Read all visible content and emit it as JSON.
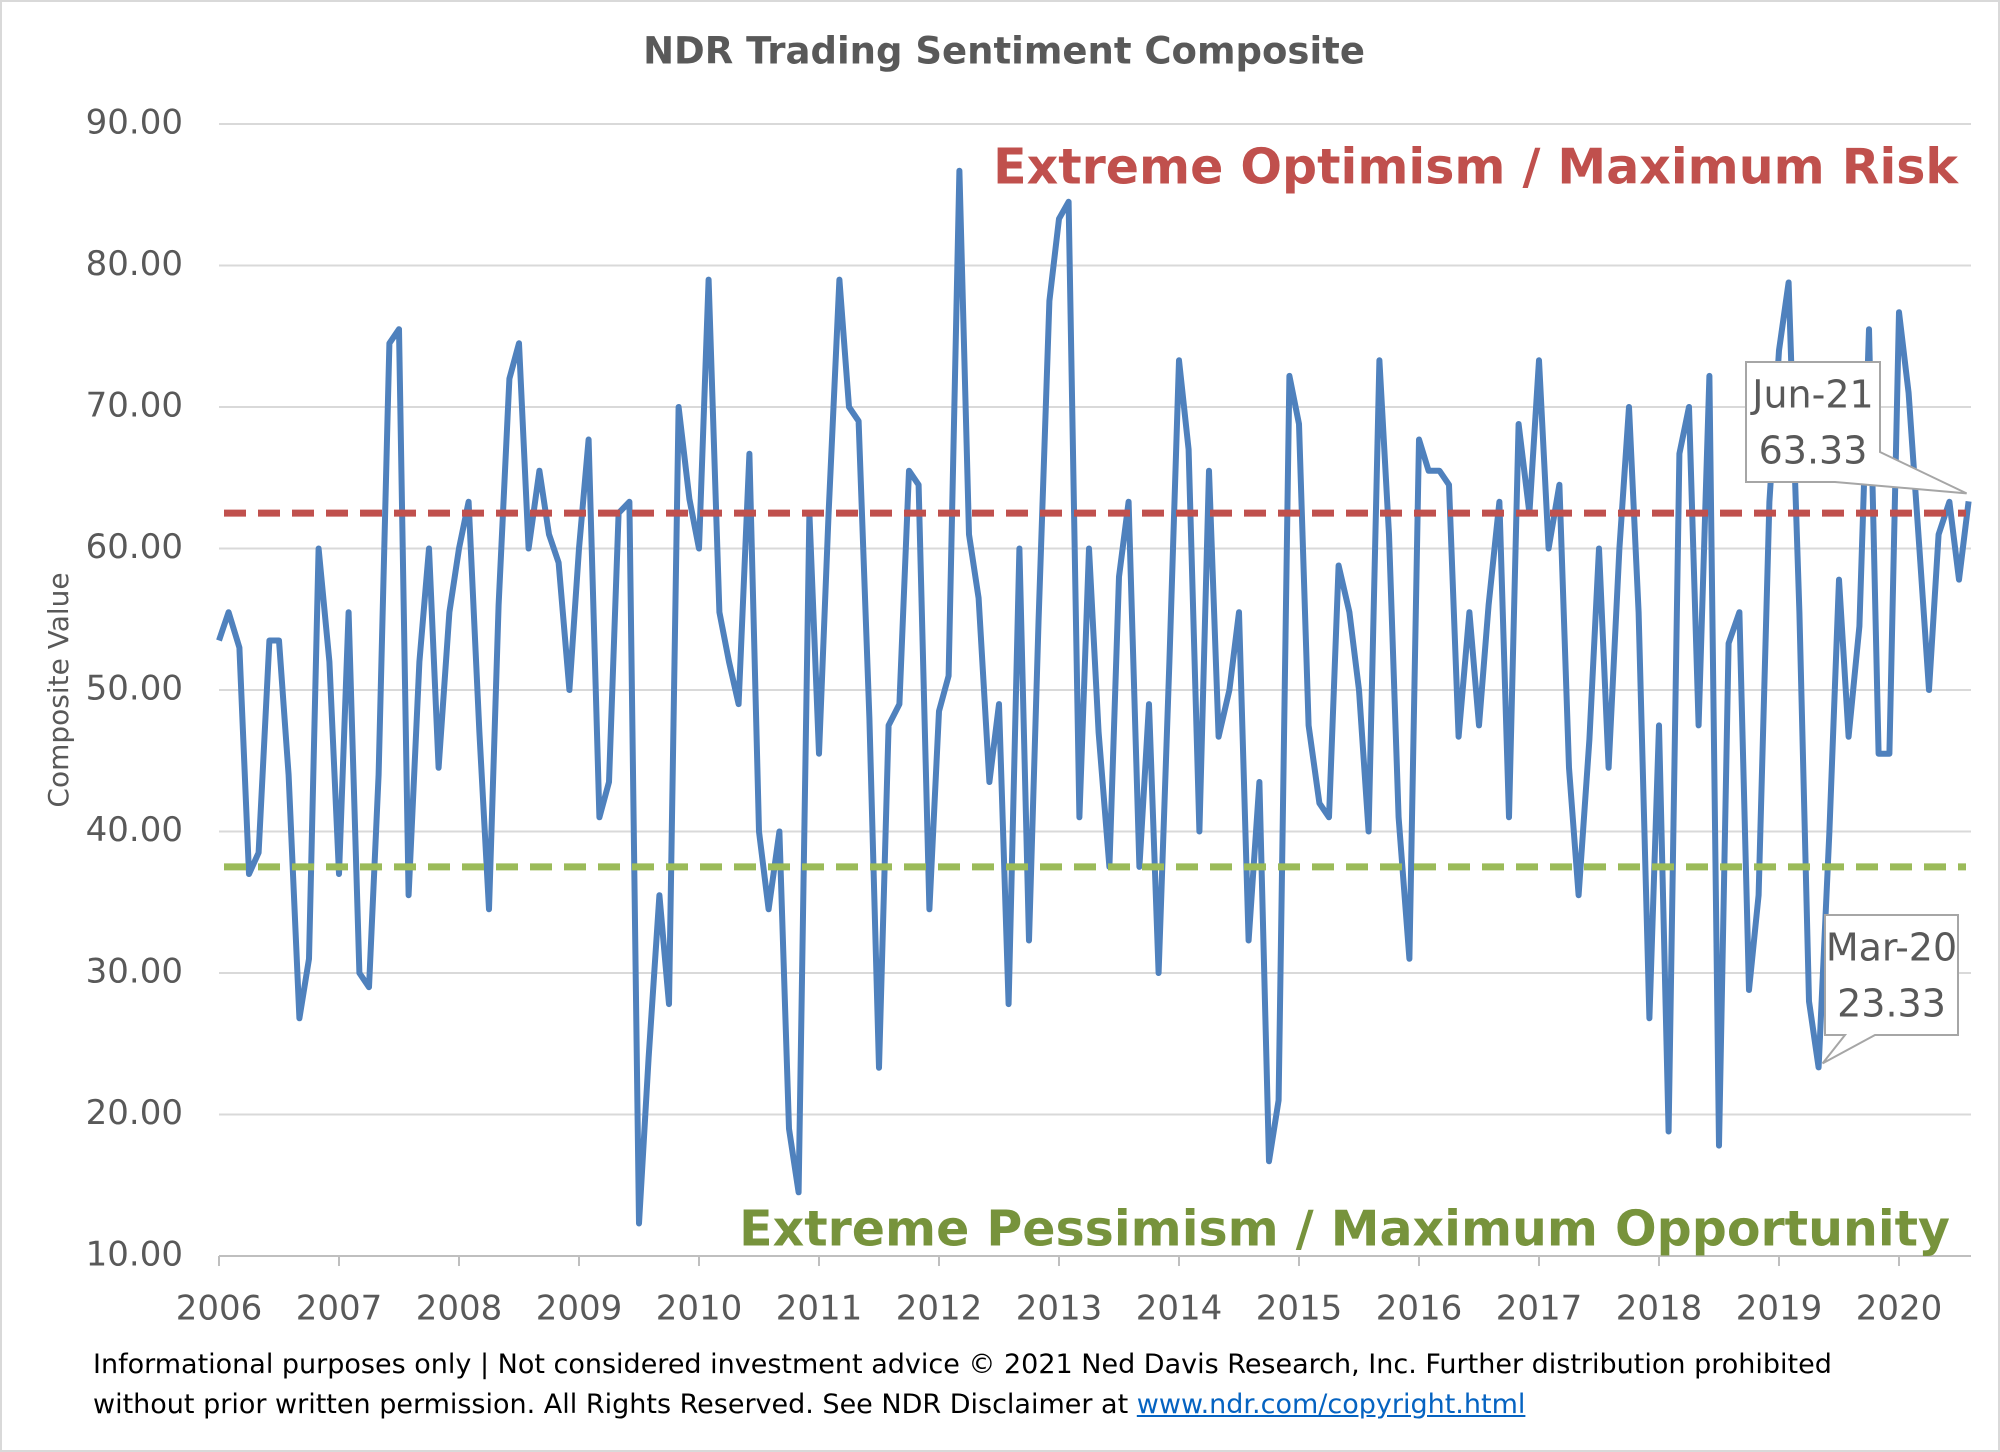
{
  "chart_data": {
    "type": "line",
    "title": "NDR Trading Sentiment Composite",
    "y_label": "Composite Value",
    "color": "#4f81bd",
    "x": [
      2006,
      2006.08,
      2006.17,
      2006.25,
      2006.33,
      2006.42,
      2006.5,
      2006.58,
      2006.67,
      2006.75,
      2006.83,
      2006.92,
      2007,
      2007.08,
      2007.17,
      2007.25,
      2007.33,
      2007.42,
      2007.5,
      2007.58,
      2007.67,
      2007.75,
      2007.83,
      2007.92,
      2008,
      2008.08,
      2008.17,
      2008.25,
      2008.33,
      2008.42,
      2008.5,
      2008.58,
      2008.67,
      2008.75,
      2008.83,
      2008.92,
      2009,
      2009.08,
      2009.17,
      2009.25,
      2009.33,
      2009.42,
      2009.5,
      2009.58,
      2009.67,
      2009.75,
      2009.83,
      2009.92,
      2010,
      2010.08,
      2010.17,
      2010.25,
      2010.33,
      2010.42,
      2010.5,
      2010.58,
      2010.67,
      2010.75,
      2010.83,
      2010.92,
      2011,
      2011.08,
      2011.17,
      2011.25,
      2011.33,
      2011.42,
      2011.5,
      2011.58,
      2011.67,
      2011.75,
      2011.83,
      2011.92,
      2012,
      2012.08,
      2012.17,
      2012.25,
      2012.33,
      2012.42,
      2012.5,
      2012.58,
      2012.67,
      2012.75,
      2012.83,
      2012.92,
      2013,
      2013.08,
      2013.17,
      2013.25,
      2013.33,
      2013.42,
      2013.5,
      2013.58,
      2013.67,
      2013.75,
      2013.83,
      2013.92,
      2014,
      2014.08,
      2014.17,
      2014.25,
      2014.33,
      2014.42,
      2014.5,
      2014.58,
      2014.67,
      2014.75,
      2014.83,
      2014.92,
      2015,
      2015.08,
      2015.17,
      2015.25,
      2015.33,
      2015.42,
      2015.5,
      2015.58,
      2015.67,
      2015.75,
      2015.83,
      2015.92,
      2016,
      2016.08,
      2016.17,
      2016.25,
      2016.33,
      2016.42,
      2016.5,
      2016.58,
      2016.67,
      2016.75,
      2016.83,
      2016.92,
      2017,
      2017.08,
      2017.17,
      2017.25,
      2017.33,
      2017.42,
      2017.5,
      2017.58,
      2017.67,
      2017.75,
      2017.83,
      2017.92,
      2018,
      2018.08,
      2018.17,
      2018.25,
      2018.33,
      2018.42,
      2018.5,
      2018.58,
      2018.67,
      2018.75,
      2018.83,
      2018.92,
      2019,
      2019.08,
      2019.17,
      2019.25,
      2019.33,
      2019.42,
      2019.5,
      2019.58,
      2019.67,
      2019.75,
      2019.83,
      2019.92,
      2020,
      2020.08,
      2020.17,
      2020.25,
      2020.33,
      2020.42,
      2020.5,
      2020.58
    ],
    "values": [
      53.5,
      55.5,
      53,
      37,
      38.5,
      53.5,
      53.5,
      44,
      26.8,
      31,
      60,
      52,
      37,
      55.5,
      30,
      29,
      44,
      74.5,
      75.5,
      35.5,
      52,
      60,
      44.5,
      55.5,
      60,
      63.3,
      47,
      34.5,
      56,
      72,
      74.5,
      60,
      65.5,
      61,
      59,
      50,
      60,
      67.7,
      41,
      43.5,
      62.5,
      63.3,
      12.3,
      24,
      35.5,
      27.8,
      70,
      63.5,
      60,
      79,
      55.5,
      52,
      49,
      66.7,
      40,
      34.5,
      40,
      19,
      14.5,
      62.5,
      45.5,
      62.5,
      79,
      70,
      69,
      48,
      23.3,
      47.5,
      49,
      65.5,
      64.5,
      34.5,
      48.5,
      51,
      86.7,
      61,
      56.5,
      43.5,
      49,
      27.8,
      60,
      32.3,
      55,
      77.5,
      83.3,
      84.5,
      41,
      60,
      47,
      37.5,
      58,
      63.3,
      37.5,
      49,
      30,
      52,
      73.3,
      67,
      40,
      65.5,
      46.7,
      50,
      55.5,
      32.3,
      43.5,
      16.7,
      21,
      72.2,
      68.8,
      47.5,
      42,
      41,
      58.8,
      55.5,
      50,
      40,
      73.3,
      61,
      41,
      31,
      67.7,
      65.5,
      65.5,
      64.5,
      46.7,
      55.5,
      47.5,
      56,
      63.3,
      41,
      68.8,
      62.5,
      73.3,
      60,
      64.5,
      44.5,
      35.5,
      46.5,
      60,
      44.5,
      60,
      70,
      55.5,
      26.8,
      47.5,
      18.8,
      66.7,
      70,
      47.5,
      72.2,
      17.8,
      53.3,
      55.5,
      28.8,
      35.5,
      63.3,
      74,
      78.8,
      55.5,
      28,
      23.33,
      40,
      57.8,
      46.7,
      54.5,
      75.5,
      45.5,
      45.5,
      76.7,
      71,
      60,
      50,
      61,
      63.3,
      57.8,
      63.33
    ],
    "xlim": [
      2006,
      2020.6
    ],
    "xticks": [
      2006,
      2007,
      2008,
      2009,
      2010,
      2011,
      2012,
      2013,
      2014,
      2015,
      2016,
      2017,
      2018,
      2019,
      2020
    ],
    "ylim": [
      10,
      90
    ],
    "yticks": [
      {
        "value": 10,
        "label": "10.00"
      },
      {
        "value": 20,
        "label": "20.00"
      },
      {
        "value": 30,
        "label": "30.00"
      },
      {
        "value": 40,
        "label": "40.00"
      },
      {
        "value": 50,
        "label": "50.00"
      },
      {
        "value": 60,
        "label": "60.00"
      },
      {
        "value": 70,
        "label": "70.00"
      },
      {
        "value": 80,
        "label": "80.00"
      },
      {
        "value": 90,
        "label": "90.00"
      }
    ],
    "grid": true,
    "reference_lines": [
      {
        "value": 62.5,
        "color": "#c0504d"
      },
      {
        "value": 37.5,
        "color": "#9bbb59"
      }
    ],
    "annotations": [
      {
        "text": "Extreme Optimism / Maximum Risk",
        "color": "#c0504d"
      },
      {
        "text": "Extreme Pessimism / Maximum Opportunity",
        "color": "#77933c"
      }
    ],
    "callouts": [
      {
        "label": "Jun-21",
        "x": 2020.58,
        "y": 63.33
      },
      {
        "label": "Mar-20",
        "x": 2019.33,
        "y": 23.33
      }
    ]
  },
  "footer": {
    "text": "Informational purposes only | Not considered investment advice © 2021 Ned Davis Research, Inc. Further distribution prohibited without prior written permission. All Rights Reserved. See NDR Disclaimer at",
    "link": "www.ndr.com/copyright.html"
  }
}
